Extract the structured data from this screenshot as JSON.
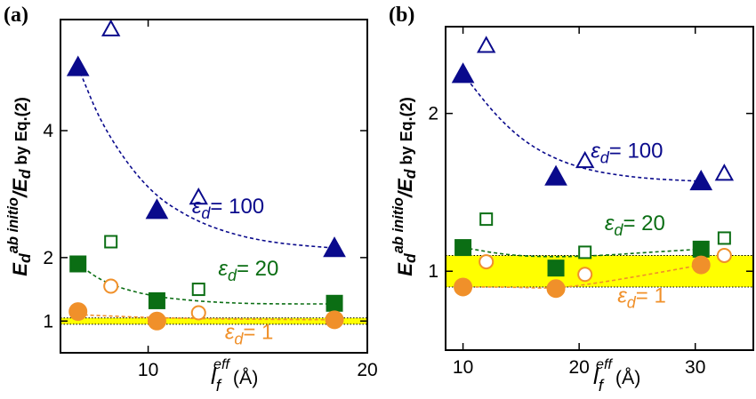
{
  "colors": {
    "navy": "#0a0a8c",
    "green": "#0b6e14",
    "orange": "#f0902a",
    "band": "#ffff00",
    "axis": "#000000"
  },
  "axes_text": {
    "ylabel": {
      "E": "E",
      "d": "d",
      "sup": "ab initio",
      "slash": "/",
      "E2": "E",
      "d2": "d",
      "tail": " by Eq.(2)"
    },
    "xlabel": {
      "l": "l",
      "sub": "f",
      "sup": "eff",
      "unit": "(Å)"
    }
  },
  "chart_data": [
    {
      "panel": "(a)",
      "type": "scatter",
      "xlim": [
        6,
        20
      ],
      "ylim": [
        0.5,
        5.75
      ],
      "xticks": [
        10,
        20
      ],
      "yticks": [
        1,
        2,
        4
      ],
      "band": [
        0.95,
        1.05
      ],
      "series": [
        {
          "name": "ε_d = 100 (filled)",
          "color": "navy",
          "marker": "triangle",
          "filled": true,
          "x": [
            6.8,
            10.4,
            18.5
          ],
          "y": [
            5.0,
            2.75,
            2.15
          ]
        },
        {
          "name": "ε_d = 100 (open)",
          "color": "navy",
          "marker": "triangle",
          "filled": false,
          "x": [
            8.3,
            12.3
          ],
          "y": [
            5.6,
            2.95
          ]
        },
        {
          "name": "ε_d = 20 (filled)",
          "color": "green",
          "marker": "square",
          "filled": true,
          "x": [
            6.8,
            10.4,
            18.5
          ],
          "y": [
            1.9,
            1.32,
            1.28
          ]
        },
        {
          "name": "ε_d = 20 (open)",
          "color": "green",
          "marker": "square",
          "filled": false,
          "x": [
            8.3,
            12.3
          ],
          "y": [
            2.25,
            1.5
          ]
        },
        {
          "name": "ε_d = 1 (filled)",
          "color": "orange",
          "marker": "circle",
          "filled": true,
          "x": [
            6.8,
            10.4,
            18.5
          ],
          "y": [
            1.15,
            1.0,
            1.02
          ]
        },
        {
          "name": "ε_d = 1 (open)",
          "color": "orange",
          "marker": "circle",
          "filled": false,
          "x": [
            8.3,
            12.3
          ],
          "y": [
            1.55,
            1.13
          ]
        }
      ],
      "fits": [
        {
          "color": "navy",
          "x": [
            6.8,
            8,
            10,
            12,
            14,
            16,
            18.5
          ],
          "y": [
            5.0,
            4.0,
            3.05,
            2.6,
            2.35,
            2.22,
            2.15
          ]
        },
        {
          "color": "green",
          "x": [
            6.8,
            8,
            10,
            12,
            14,
            16,
            18.5
          ],
          "y": [
            1.9,
            1.6,
            1.4,
            1.32,
            1.28,
            1.27,
            1.27
          ]
        },
        {
          "color": "orange",
          "x": [
            6.8,
            10.4,
            14,
            18.5
          ],
          "y": [
            1.1,
            1.05,
            1.03,
            1.02
          ]
        }
      ],
      "annotations": [
        {
          "prefix": "ε",
          "sub": "d",
          "rest": "= 100",
          "color": "navy",
          "x": 12.0,
          "y": 2.7
        },
        {
          "prefix": "ε",
          "sub": "d",
          "rest": "= 20",
          "color": "green",
          "x": 13.2,
          "y": 1.72
        },
        {
          "prefix": "ε",
          "sub": "d",
          "rest": "= 1",
          "color": "orange",
          "x": 13.5,
          "y": 0.72
        }
      ]
    },
    {
      "panel": "(b)",
      "type": "scatter",
      "xlim": [
        8.5,
        35
      ],
      "ylim": [
        0.5,
        2.55
      ],
      "xticks": [
        10,
        20,
        30
      ],
      "yticks": [
        1,
        2
      ],
      "band": [
        0.9,
        1.1
      ],
      "series": [
        {
          "name": "ε_d = 100 (filled)",
          "color": "navy",
          "marker": "triangle",
          "filled": true,
          "x": [
            10,
            18,
            30.5
          ],
          "y": [
            2.25,
            1.6,
            1.57
          ]
        },
        {
          "name": "ε_d = 100 (open)",
          "color": "navy",
          "marker": "triangle",
          "filled": false,
          "x": [
            12,
            20.5,
            32.5
          ],
          "y": [
            2.43,
            1.7,
            1.62
          ]
        },
        {
          "name": "ε_d = 20 (filled)",
          "color": "green",
          "marker": "square",
          "filled": true,
          "x": [
            10,
            18,
            30.5
          ],
          "y": [
            1.15,
            1.02,
            1.14
          ]
        },
        {
          "name": "ε_d = 20 (open)",
          "color": "green",
          "marker": "square",
          "filled": false,
          "x": [
            12,
            20.5,
            32.5
          ],
          "y": [
            1.33,
            1.12,
            1.21
          ]
        },
        {
          "name": "ε_d = 1 (filled)",
          "color": "orange",
          "marker": "circle",
          "filled": true,
          "x": [
            10,
            18,
            30.5
          ],
          "y": [
            0.9,
            0.89,
            1.04
          ]
        },
        {
          "name": "ε_d = 1 (open)",
          "color": "orange",
          "marker": "circle",
          "filled": false,
          "x": [
            12,
            20.5,
            32.5
          ],
          "y": [
            1.06,
            0.98,
            1.1
          ]
        }
      ],
      "fits": [
        {
          "color": "navy",
          "x": [
            10,
            13,
            16,
            20,
            25,
            30.5
          ],
          "y": [
            2.25,
            1.97,
            1.78,
            1.65,
            1.59,
            1.57
          ]
        },
        {
          "color": "green",
          "x": [
            10,
            14,
            18,
            22,
            26,
            30.5
          ],
          "y": [
            1.15,
            1.1,
            1.09,
            1.1,
            1.12,
            1.14
          ]
        },
        {
          "color": "orange",
          "x": [
            10,
            14,
            18,
            22,
            26,
            30.5
          ],
          "y": [
            0.9,
            0.9,
            0.89,
            0.93,
            0.98,
            1.04
          ]
        }
      ],
      "annotations": [
        {
          "prefix": "ε",
          "sub": "d",
          "rest": "= 100",
          "color": "navy",
          "x": 21.0,
          "y": 1.72
        },
        {
          "prefix": "ε",
          "sub": "d",
          "rest": "= 20",
          "color": "green",
          "x": 22.2,
          "y": 1.26
        },
        {
          "prefix": "ε",
          "sub": "d",
          "rest": "= 1",
          "color": "orange",
          "x": 23.3,
          "y": 0.8
        }
      ]
    }
  ]
}
